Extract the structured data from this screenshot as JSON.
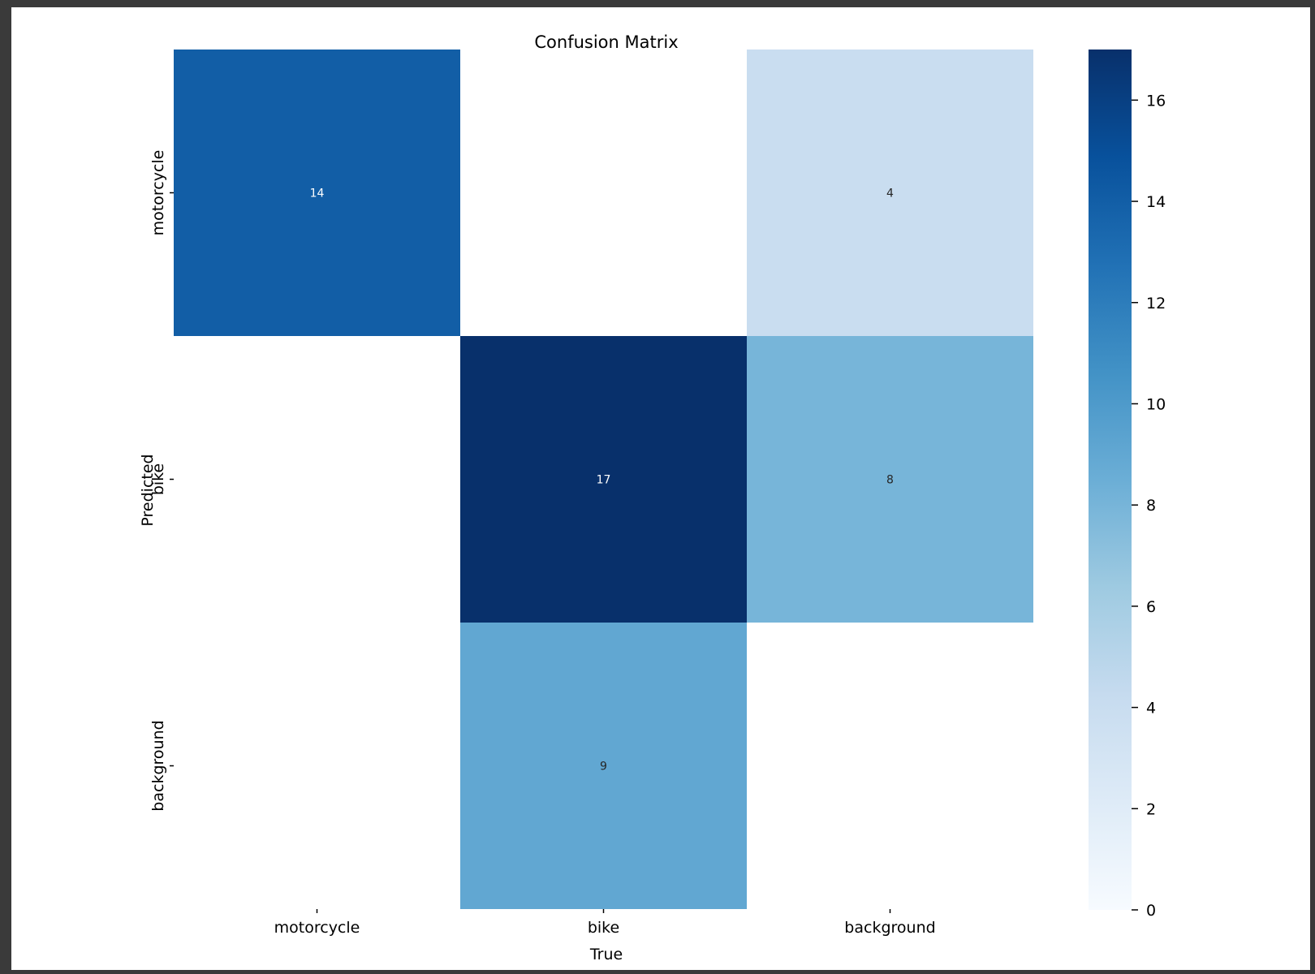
{
  "chart_data": {
    "type": "heatmap",
    "title": "Confusion Matrix",
    "xlabel": "True",
    "ylabel": "Predicted",
    "x_categories": [
      "motorcycle",
      "bike",
      "background"
    ],
    "y_categories": [
      "motorcycle",
      "bike",
      "background"
    ],
    "values": [
      [
        14,
        null,
        4
      ],
      [
        null,
        17,
        8
      ],
      [
        null,
        9,
        null
      ]
    ],
    "colorbar": {
      "min": 0,
      "max": 17,
      "ticks": [
        0,
        2,
        4,
        6,
        8,
        10,
        12,
        14,
        16
      ],
      "colormap": "Blues"
    },
    "grid": false
  }
}
